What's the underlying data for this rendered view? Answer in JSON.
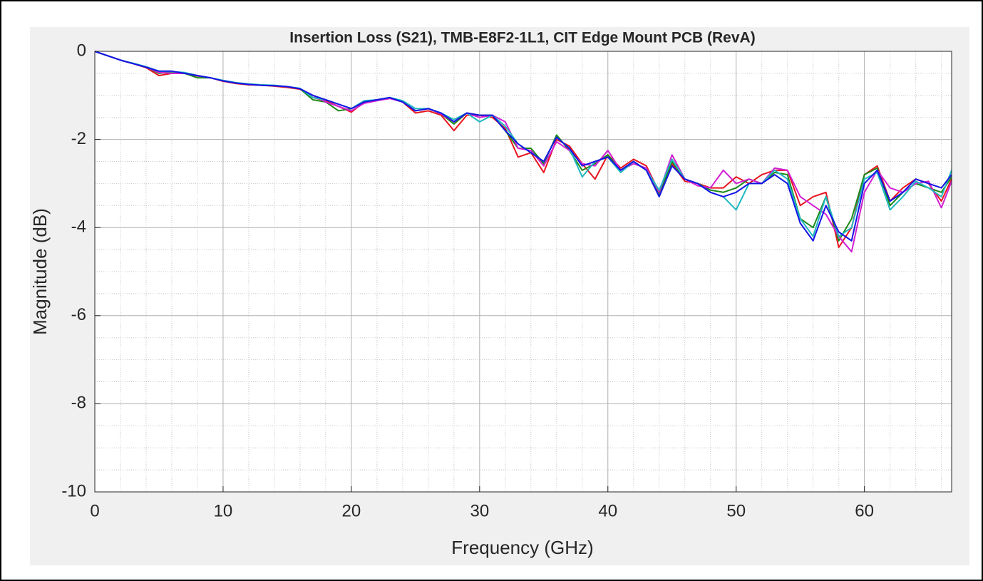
{
  "chart_data": {
    "type": "line",
    "title": "Insertion Loss (S21), TMB-E8F2-1L1, CIT Edge Mount PCB (RevA)",
    "xlabel": "Frequency (GHz)",
    "ylabel": "Magnitude (dB)",
    "xlim": [
      0,
      66.8
    ],
    "ylim": [
      -10,
      0
    ],
    "xticks": [
      0,
      10,
      20,
      30,
      40,
      50,
      60
    ],
    "yticks": [
      -10,
      -8,
      -6,
      -4,
      -2,
      0
    ],
    "xminorticks": [
      2,
      4,
      6,
      8,
      12,
      14,
      16,
      18,
      22,
      24,
      26,
      28,
      32,
      34,
      36,
      38,
      42,
      44,
      46,
      48,
      52,
      54,
      56,
      58,
      62,
      64,
      66
    ],
    "yminorticks": [
      -9.5,
      -9,
      -8.5,
      -7.5,
      -7,
      -6.5,
      -5.5,
      -5,
      -4.5,
      -3.5,
      -3,
      -2.5,
      -1.5,
      -1,
      -0.5
    ],
    "grid": true,
    "x": [
      0,
      1,
      2,
      3,
      4,
      5,
      6,
      7,
      8,
      9,
      10,
      11,
      12,
      13,
      14,
      15,
      16,
      17,
      18,
      19,
      20,
      21,
      22,
      23,
      24,
      25,
      26,
      27,
      28,
      29,
      30,
      31,
      32,
      33,
      34,
      35,
      36,
      37,
      38,
      39,
      40,
      41,
      42,
      43,
      44,
      45,
      46,
      47,
      48,
      49,
      50,
      51,
      52,
      53,
      54,
      55,
      56,
      57,
      58,
      59,
      60,
      61,
      62,
      63,
      64,
      65,
      66,
      66.8
    ],
    "series": [
      {
        "color": "#e8141e",
        "values": [
          0,
          -0.1,
          -0.2,
          -0.28,
          -0.37,
          -0.55,
          -0.5,
          -0.5,
          -0.56,
          -0.6,
          -0.68,
          -0.73,
          -0.76,
          -0.77,
          -0.79,
          -0.82,
          -0.86,
          -1.05,
          -1.12,
          -1.25,
          -1.38,
          -1.15,
          -1.1,
          -1.05,
          -1.15,
          -1.4,
          -1.35,
          -1.45,
          -1.8,
          -1.45,
          -1.45,
          -1.5,
          -1.75,
          -2.4,
          -2.3,
          -2.75,
          -2.0,
          -2.15,
          -2.55,
          -2.9,
          -2.35,
          -2.65,
          -2.45,
          -2.6,
          -3.2,
          -2.55,
          -2.95,
          -3.0,
          -3.1,
          -3.1,
          -2.85,
          -3.0,
          -2.8,
          -2.7,
          -2.7,
          -3.5,
          -3.3,
          -3.2,
          -4.45,
          -4.0,
          -2.8,
          -2.6,
          -3.4,
          -3.1,
          -2.9,
          -3.0,
          -3.4,
          -2.9
        ]
      },
      {
        "color": "#1a8a1a",
        "values": [
          0,
          -0.1,
          -0.2,
          -0.28,
          -0.36,
          -0.5,
          -0.47,
          -0.5,
          -0.6,
          -0.6,
          -0.67,
          -0.72,
          -0.75,
          -0.77,
          -0.78,
          -0.8,
          -0.85,
          -1.1,
          -1.15,
          -1.35,
          -1.3,
          -1.15,
          -1.1,
          -1.05,
          -1.15,
          -1.35,
          -1.3,
          -1.42,
          -1.65,
          -1.4,
          -1.45,
          -1.45,
          -1.8,
          -2.2,
          -2.2,
          -2.55,
          -1.9,
          -2.25,
          -2.7,
          -2.55,
          -2.35,
          -2.7,
          -2.5,
          -2.7,
          -3.25,
          -2.5,
          -2.9,
          -3.0,
          -3.15,
          -3.2,
          -3.1,
          -2.9,
          -3.0,
          -2.75,
          -2.8,
          -3.8,
          -4.0,
          -3.3,
          -4.3,
          -3.8,
          -2.8,
          -2.65,
          -3.5,
          -3.2,
          -3.0,
          -3.1,
          -3.2,
          -2.85
        ]
      },
      {
        "color": "#d11fd1",
        "values": [
          0,
          -0.1,
          -0.2,
          -0.28,
          -0.36,
          -0.48,
          -0.5,
          -0.5,
          -0.55,
          -0.6,
          -0.67,
          -0.72,
          -0.75,
          -0.77,
          -0.78,
          -0.8,
          -0.85,
          -1.0,
          -1.15,
          -1.25,
          -1.35,
          -1.18,
          -1.12,
          -1.07,
          -1.15,
          -1.35,
          -1.3,
          -1.42,
          -1.6,
          -1.4,
          -1.5,
          -1.45,
          -1.6,
          -2.2,
          -2.25,
          -2.6,
          -2.05,
          -2.25,
          -2.55,
          -2.6,
          -2.25,
          -2.7,
          -2.55,
          -2.65,
          -3.2,
          -2.35,
          -2.9,
          -3.05,
          -3.1,
          -2.7,
          -3.0,
          -2.9,
          -3.0,
          -2.65,
          -2.7,
          -3.3,
          -3.5,
          -3.7,
          -4.2,
          -4.55,
          -3.2,
          -2.7,
          -3.1,
          -3.2,
          -3.0,
          -2.95,
          -3.55,
          -2.95
        ]
      },
      {
        "color": "#1fb8c0",
        "values": [
          0,
          -0.1,
          -0.2,
          -0.27,
          -0.35,
          -0.45,
          -0.46,
          -0.48,
          -0.55,
          -0.6,
          -0.66,
          -0.71,
          -0.74,
          -0.76,
          -0.77,
          -0.8,
          -0.84,
          -1.05,
          -1.1,
          -1.2,
          -1.3,
          -1.12,
          -1.1,
          -1.05,
          -1.12,
          -1.3,
          -1.3,
          -1.4,
          -1.55,
          -1.4,
          -1.6,
          -1.45,
          -1.7,
          -2.1,
          -2.3,
          -2.5,
          -1.95,
          -2.2,
          -2.85,
          -2.5,
          -2.4,
          -2.75,
          -2.5,
          -2.7,
          -3.15,
          -2.45,
          -2.9,
          -3.0,
          -3.2,
          -3.3,
          -3.6,
          -3.0,
          -3.0,
          -2.7,
          -2.9,
          -3.8,
          -4.2,
          -3.3,
          -4.2,
          -4.0,
          -2.9,
          -2.75,
          -3.6,
          -3.3,
          -2.95,
          -3.1,
          -3.3,
          -2.7
        ]
      },
      {
        "color": "#1414e6",
        "values": [
          0,
          -0.1,
          -0.2,
          -0.28,
          -0.36,
          -0.45,
          -0.45,
          -0.5,
          -0.55,
          -0.6,
          -0.67,
          -0.72,
          -0.75,
          -0.77,
          -0.78,
          -0.8,
          -0.85,
          -1.0,
          -1.1,
          -1.2,
          -1.3,
          -1.15,
          -1.1,
          -1.05,
          -1.15,
          -1.35,
          -1.3,
          -1.4,
          -1.6,
          -1.4,
          -1.45,
          -1.45,
          -1.8,
          -2.1,
          -2.3,
          -2.5,
          -1.95,
          -2.2,
          -2.6,
          -2.5,
          -2.4,
          -2.7,
          -2.5,
          -2.7,
          -3.3,
          -2.6,
          -2.9,
          -3.0,
          -3.2,
          -3.3,
          -3.2,
          -3.0,
          -3.0,
          -2.8,
          -3.0,
          -3.9,
          -4.3,
          -3.5,
          -4.1,
          -4.3,
          -3.0,
          -2.7,
          -3.4,
          -3.2,
          -2.9,
          -3.0,
          -3.1,
          -2.8
        ]
      }
    ]
  }
}
